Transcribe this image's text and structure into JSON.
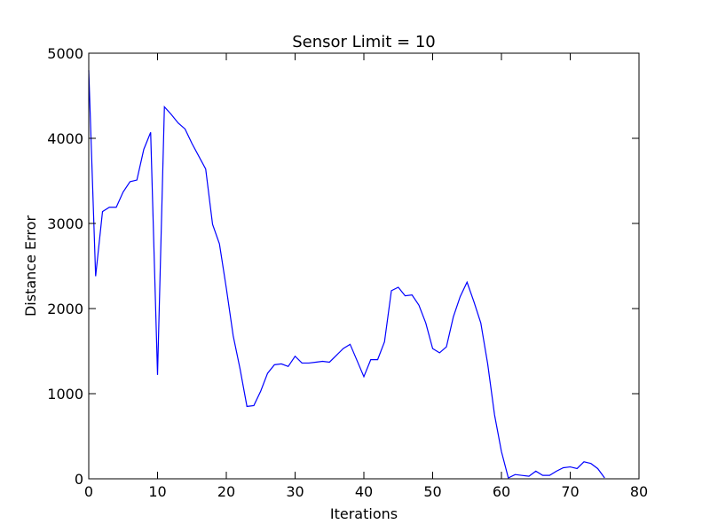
{
  "chart_data": {
    "type": "line",
    "title": "Sensor Limit = 10",
    "xlabel": "Iterations",
    "ylabel": "Distance Error",
    "xlim": [
      0,
      80
    ],
    "ylim": [
      0,
      5000
    ],
    "grid": false,
    "xticks": [
      "0",
      "10",
      "20",
      "30",
      "40",
      "50",
      "60",
      "70",
      "80"
    ],
    "yticks": [
      "0",
      "1000",
      "2000",
      "3000",
      "4000",
      "5000"
    ],
    "series_color": "#0000ff",
    "series": [
      {
        "x": [
          0,
          1,
          2,
          3,
          4,
          5,
          6,
          7,
          8,
          9,
          10,
          11,
          12,
          13,
          14,
          15,
          16,
          17,
          18,
          19,
          20,
          21,
          22,
          23,
          24,
          25,
          26,
          27,
          28,
          29,
          30,
          31,
          32,
          33,
          34,
          35,
          36,
          37,
          38,
          39,
          40,
          41,
          42,
          43,
          44,
          45,
          46,
          47,
          48,
          49,
          50,
          51,
          52,
          53,
          54,
          55,
          56,
          57,
          58,
          59,
          60,
          61,
          62,
          63,
          64,
          65,
          66,
          67,
          68,
          69,
          70,
          71,
          72,
          73,
          74,
          75
        ],
        "values": [
          4800,
          2380,
          3140,
          3190,
          3190,
          3370,
          3490,
          3510,
          3870,
          4070,
          1220,
          4370,
          4280,
          4180,
          4110,
          3940,
          3790,
          3640,
          2990,
          2760,
          2240,
          1680,
          1290,
          850,
          860,
          1030,
          1240,
          1340,
          1350,
          1320,
          1440,
          1360,
          1360,
          1370,
          1380,
          1370,
          1450,
          1530,
          1580,
          1390,
          1200,
          1400,
          1400,
          1610,
          2210,
          2250,
          2150,
          2160,
          2040,
          1830,
          1530,
          1480,
          1550,
          1900,
          2140,
          2310,
          2080,
          1830,
          1350,
          750,
          320,
          10,
          50,
          40,
          30,
          90,
          40,
          40,
          90,
          130,
          140,
          120,
          200,
          180,
          120,
          10
        ]
      }
    ]
  }
}
